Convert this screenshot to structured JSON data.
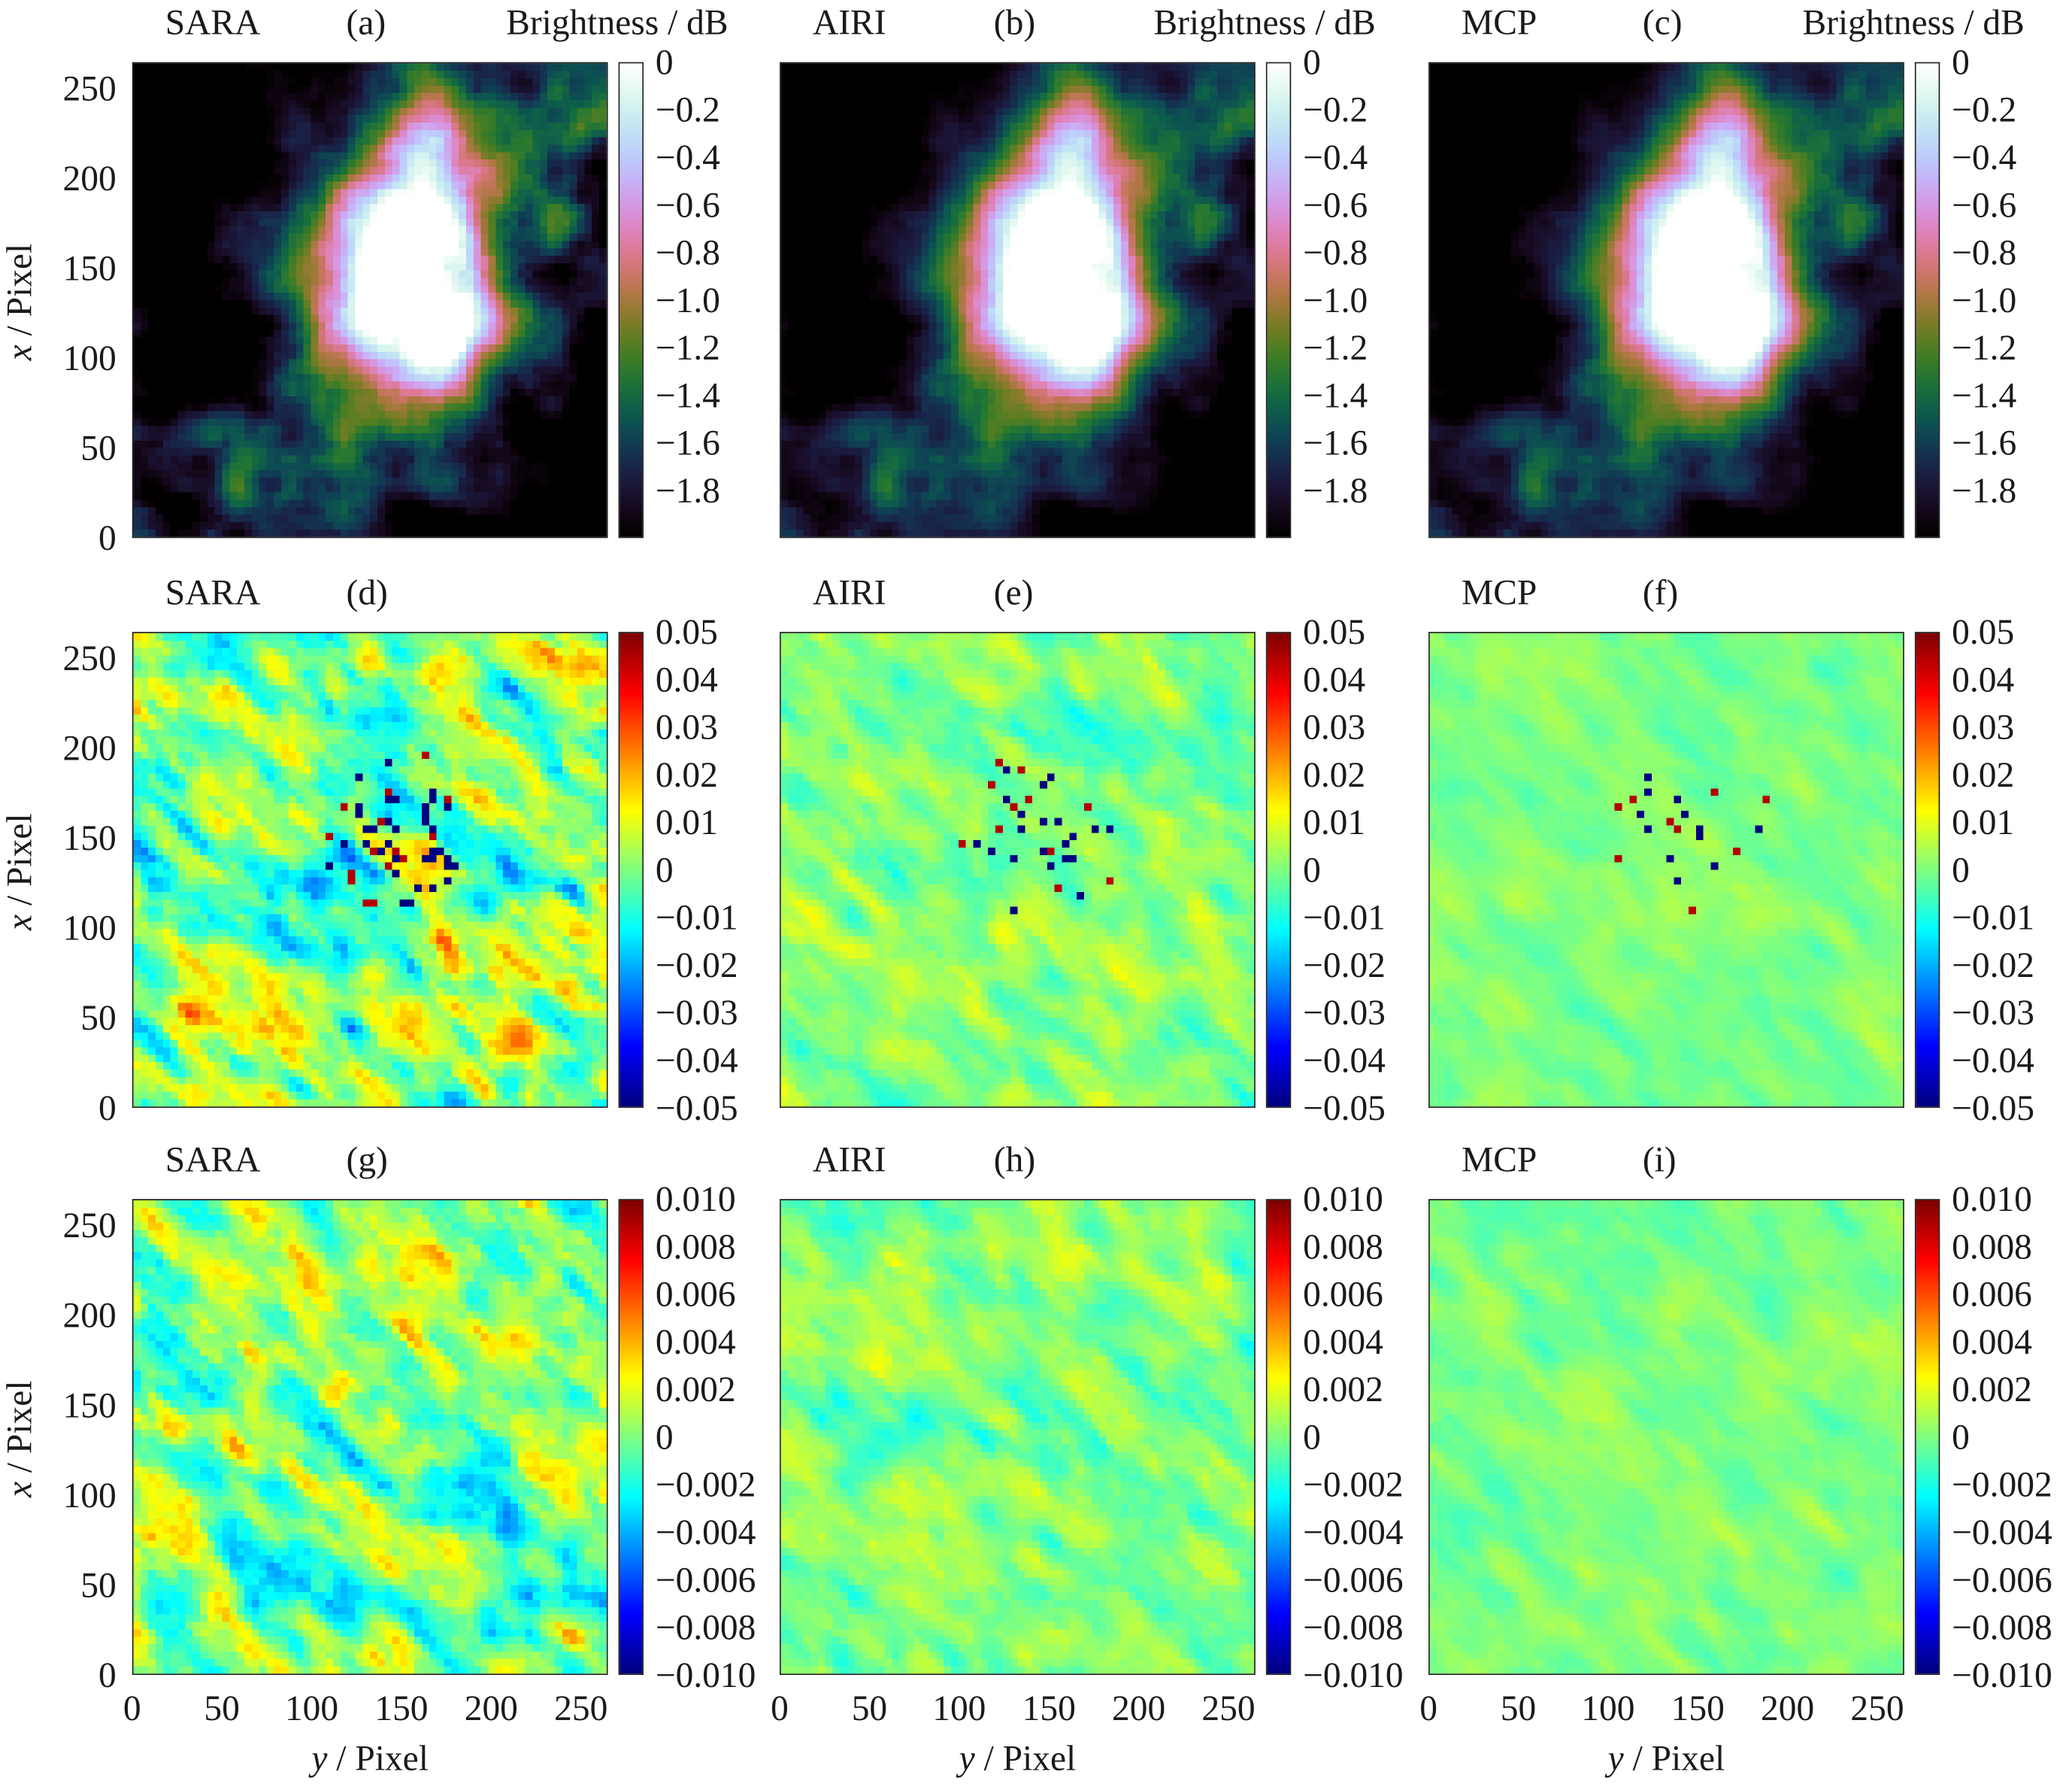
{
  "chart_data": [
    {
      "panel": "a",
      "type": "heatmap",
      "method": "SARA",
      "panel_label": "(a)",
      "colorbar_title": "Brightness / dB",
      "colormap": "cubehelix",
      "clim": [
        -2,
        0
      ],
      "colorbar_ticks": [
        "0",
        "−0.2",
        "−0.4",
        "−0.6",
        "−0.8",
        "−1.0",
        "−1.2",
        "−1.4",
        "−1.6",
        "−1.8"
      ],
      "xlabel": "",
      "ylabel": "x / Pixel",
      "xlim": [
        0,
        265
      ],
      "ylim": [
        0,
        265
      ]
    },
    {
      "panel": "b",
      "type": "heatmap",
      "method": "AIRI",
      "panel_label": "(b)",
      "colorbar_title": "Brightness / dB",
      "colormap": "cubehelix",
      "clim": [
        -2,
        0
      ],
      "colorbar_ticks": [
        "0",
        "−0.2",
        "−0.4",
        "−0.6",
        "−0.8",
        "−1.0",
        "−1.2",
        "−1.4",
        "−1.6",
        "−1.8"
      ],
      "xlim": [
        0,
        265
      ],
      "ylim": [
        0,
        265
      ]
    },
    {
      "panel": "c",
      "type": "heatmap",
      "method": "MCP",
      "panel_label": "(c)",
      "colorbar_title": "Brightness / dB",
      "colormap": "cubehelix",
      "clim": [
        -2,
        0
      ],
      "colorbar_ticks": [
        "0",
        "−0.2",
        "−0.4",
        "−0.6",
        "−0.8",
        "−1.0",
        "−1.2",
        "−1.4",
        "−1.6",
        "−1.8"
      ],
      "xlim": [
        0,
        265
      ],
      "ylim": [
        0,
        265
      ]
    },
    {
      "panel": "d",
      "type": "heatmap",
      "method": "SARA",
      "panel_label": "(d)",
      "colormap": "jet",
      "clim": [
        -0.05,
        0.05
      ],
      "colorbar_ticks": [
        "0.05",
        "0.04",
        "0.03",
        "0.02",
        "0.01",
        "0",
        "−0.01",
        "−0.02",
        "−0.03",
        "−0.04",
        "−0.05"
      ],
      "ylabel": "x / Pixel",
      "xlim": [
        0,
        265
      ],
      "ylim": [
        0,
        265
      ]
    },
    {
      "panel": "e",
      "type": "heatmap",
      "method": "AIRI",
      "panel_label": "(e)",
      "colormap": "jet",
      "clim": [
        -0.05,
        0.05
      ],
      "colorbar_ticks": [
        "0.05",
        "0.04",
        "0.03",
        "0.02",
        "0.01",
        "0",
        "−0.01",
        "−0.02",
        "−0.03",
        "−0.04",
        "−0.05"
      ],
      "xlim": [
        0,
        265
      ],
      "ylim": [
        0,
        265
      ]
    },
    {
      "panel": "f",
      "type": "heatmap",
      "method": "MCP",
      "panel_label": "(f)",
      "colormap": "jet",
      "clim": [
        -0.05,
        0.05
      ],
      "colorbar_ticks": [
        "0.05",
        "0.04",
        "0.03",
        "0.02",
        "0.01",
        "0",
        "−0.01",
        "−0.02",
        "−0.03",
        "−0.04",
        "−0.05"
      ],
      "xlim": [
        0,
        265
      ],
      "ylim": [
        0,
        265
      ]
    },
    {
      "panel": "g",
      "type": "heatmap",
      "method": "SARA",
      "panel_label": "(g)",
      "colormap": "jet",
      "clim": [
        -0.01,
        0.01
      ],
      "colorbar_ticks": [
        "0.010",
        "0.008",
        "0.006",
        "0.004",
        "0.002",
        "0",
        "−0.002",
        "−0.004",
        "−0.006",
        "−0.008",
        "−0.010"
      ],
      "xlabel": "y / Pixel",
      "ylabel": "x / Pixel",
      "xlim": [
        0,
        265
      ],
      "ylim": [
        0,
        265
      ]
    },
    {
      "panel": "h",
      "type": "heatmap",
      "method": "AIRI",
      "panel_label": "(h)",
      "colormap": "jet",
      "clim": [
        -0.01,
        0.01
      ],
      "colorbar_ticks": [
        "0.010",
        "0.008",
        "0.006",
        "0.004",
        "0.002",
        "0",
        "−0.002",
        "−0.004",
        "−0.006",
        "−0.008",
        "−0.010"
      ],
      "xlabel": "y / Pixel",
      "xlim": [
        0,
        265
      ],
      "ylim": [
        0,
        265
      ]
    },
    {
      "panel": "i",
      "type": "heatmap",
      "method": "MCP",
      "panel_label": "(i)",
      "colormap": "jet",
      "clim": [
        -0.01,
        0.01
      ],
      "colorbar_ticks": [
        "0.010",
        "0.008",
        "0.006",
        "0.004",
        "0.002",
        "0",
        "−0.002",
        "−0.004",
        "−0.006",
        "−0.008",
        "−0.010"
      ],
      "xlabel": "y / Pixel",
      "xlim": [
        0,
        265
      ],
      "ylim": [
        0,
        265
      ]
    }
  ],
  "axes": {
    "ylabel_var": "x",
    "xlabel_var": "y",
    "label_unit": " / Pixel",
    "tick_values": [
      "0",
      "50",
      "100",
      "150",
      "200",
      "250"
    ]
  }
}
